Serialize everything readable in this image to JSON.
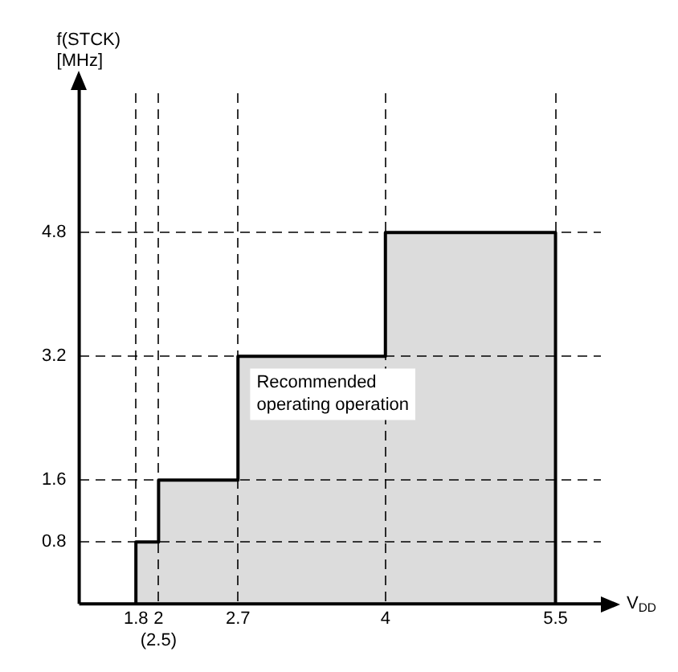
{
  "chart_data": {
    "type": "area",
    "xlabel": "V$_{DD}$",
    "ylabel": "f(STCK)\n[MHz]",
    "x": [
      1.8,
      1.8,
      2,
      2,
      2.7,
      2.7,
      4,
      4,
      5.5,
      5.5
    ],
    "series": [
      {
        "color": "#000000",
        "values": [
          0,
          0.8,
          0.8,
          1.6,
          1.6,
          3.2,
          3.2,
          4.8,
          4.8,
          0
        ]
      }
    ],
    "xlim": [
      1.3,
      5.9
    ],
    "ylim": [
      0,
      6.6
    ],
    "xticks": [
      1.8,
      {
        "value": 2,
        "label": "2\n(2.5)"
      },
      2.7,
      4,
      5.5
    ],
    "yticks": [
      0.8,
      1.6,
      3.2,
      4.8
    ],
    "grid": true,
    "legend": false,
    "annotations": [
      "Recommended\noperating operation"
    ]
  }
}
